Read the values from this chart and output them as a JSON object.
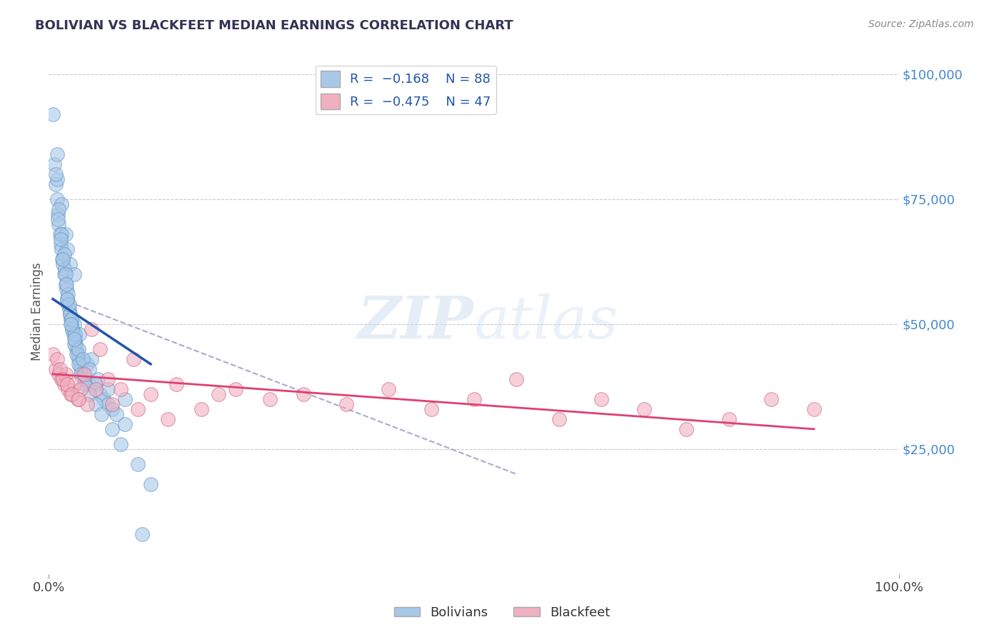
{
  "title": "BOLIVIAN VS BLACKFEET MEDIAN EARNINGS CORRELATION CHART",
  "source": "Source: ZipAtlas.com",
  "ylabel": "Median Earnings",
  "xlim": [
    0,
    100
  ],
  "ylim": [
    0,
    105000
  ],
  "background_color": "#ffffff",
  "grid_color": "#c8c8d0",
  "bolivians_color": "#a8c8e8",
  "blackfeet_color": "#f0b0c0",
  "bolivians_edge": "#6090c0",
  "blackfeet_edge": "#d06080",
  "trend_blue": "#2255aa",
  "trend_pink": "#e04070",
  "trend_gray": "#aaaacc",
  "legend_label1": "Bolivians",
  "legend_label2": "Blackfeet",
  "bolivians_x": [
    0.5,
    0.7,
    0.8,
    1.0,
    1.0,
    1.1,
    1.2,
    1.3,
    1.4,
    1.5,
    1.5,
    1.6,
    1.7,
    1.8,
    1.9,
    2.0,
    2.0,
    2.1,
    2.2,
    2.2,
    2.3,
    2.4,
    2.5,
    2.5,
    2.6,
    2.7,
    2.8,
    2.9,
    3.0,
    3.0,
    3.1,
    3.2,
    3.3,
    3.4,
    3.5,
    3.6,
    3.7,
    3.8,
    4.0,
    4.2,
    4.5,
    4.8,
    5.0,
    5.5,
    6.0,
    6.5,
    7.0,
    7.5,
    8.0,
    9.0,
    1.0,
    1.2,
    1.5,
    1.8,
    2.0,
    2.3,
    2.5,
    2.8,
    3.0,
    3.3,
    3.5,
    3.8,
    4.2,
    4.8,
    5.5,
    6.2,
    7.5,
    8.5,
    10.5,
    12.0,
    0.8,
    1.1,
    1.4,
    1.7,
    2.1,
    2.4,
    2.7,
    3.1,
    3.5,
    4.0,
    4.8,
    5.8,
    7.0,
    9.0,
    11.0,
    2.2,
    2.6,
    3.0
  ],
  "bolivians_y": [
    92000,
    82000,
    78000,
    75000,
    84000,
    72000,
    70000,
    68000,
    66000,
    65000,
    74000,
    63000,
    62000,
    60000,
    61000,
    58000,
    68000,
    57000,
    55000,
    65000,
    54000,
    53000,
    52000,
    62000,
    51000,
    50000,
    49000,
    48000,
    50000,
    60000,
    47000,
    46000,
    45000,
    44000,
    43000,
    48000,
    42000,
    41000,
    40000,
    39000,
    42000,
    38000,
    43000,
    38000,
    36000,
    35000,
    34000,
    33000,
    32000,
    30000,
    79000,
    73000,
    68000,
    64000,
    60000,
    56000,
    52000,
    49000,
    46000,
    44000,
    42000,
    40000,
    38000,
    36000,
    34000,
    32000,
    29000,
    26000,
    22000,
    18000,
    80000,
    71000,
    67000,
    63000,
    58000,
    54000,
    51000,
    48000,
    45000,
    43000,
    41000,
    39000,
    37000,
    35000,
    8000,
    55000,
    50000,
    47000
  ],
  "blackfeet_x": [
    0.5,
    0.8,
    1.0,
    1.2,
    1.5,
    1.8,
    2.0,
    2.3,
    2.6,
    3.0,
    3.4,
    3.8,
    4.5,
    5.0,
    6.0,
    7.0,
    8.5,
    10.0,
    12.0,
    15.0,
    18.0,
    22.0,
    26.0,
    30.0,
    35.0,
    40.0,
    45.0,
    50.0,
    55.0,
    60.0,
    65.0,
    70.0,
    75.0,
    80.0,
    85.0,
    90.0,
    1.3,
    1.7,
    2.2,
    2.8,
    3.5,
    4.2,
    5.5,
    7.5,
    10.5,
    14.0,
    20.0
  ],
  "blackfeet_y": [
    44000,
    41000,
    43000,
    40000,
    39000,
    38000,
    40000,
    37000,
    36000,
    38000,
    35000,
    37000,
    34000,
    49000,
    45000,
    39000,
    37000,
    43000,
    36000,
    38000,
    33000,
    37000,
    35000,
    36000,
    34000,
    37000,
    33000,
    35000,
    39000,
    31000,
    35000,
    33000,
    29000,
    31000,
    35000,
    33000,
    41000,
    39000,
    38000,
    36000,
    35000,
    40000,
    37000,
    34000,
    33000,
    31000,
    36000
  ],
  "blue_trend_x": [
    0.5,
    12.0
  ],
  "blue_trend_y": [
    55000,
    42000
  ],
  "pink_trend_x": [
    0.5,
    90.0
  ],
  "pink_trend_y": [
    40000,
    29000
  ],
  "gray_trend_x": [
    1.5,
    55.0
  ],
  "gray_trend_y": [
    55000,
    20000
  ]
}
